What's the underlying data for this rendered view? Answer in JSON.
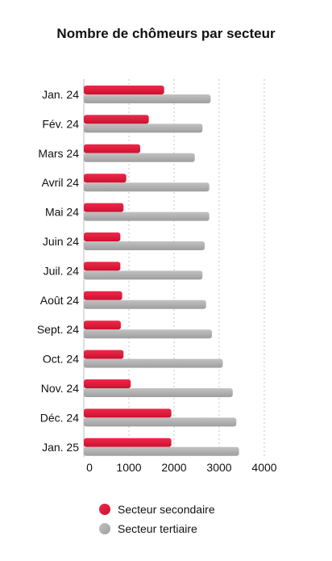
{
  "chart_data": {
    "type": "bar",
    "orientation": "horizontal",
    "title": "Nombre de chômeurs par secteur",
    "categories": [
      "Jan. 24",
      "Fév. 24",
      "Mars 24",
      "Avril 24",
      "Mai 24",
      "Juin 24",
      "Juil. 24",
      "Août 24",
      "Sept. 24",
      "Oct. 24",
      "Nov. 24",
      "Déc. 24",
      "Jan. 25"
    ],
    "series": [
      {
        "name": "Secteur secondaire",
        "color": "#e3173e",
        "values": [
          1780,
          1440,
          1250,
          940,
          880,
          810,
          810,
          850,
          820,
          880,
          1040,
          1940,
          1940
        ]
      },
      {
        "name": "Secteur tertiaire",
        "color": "#b1b1b1",
        "values": [
          2810,
          2630,
          2460,
          2780,
          2780,
          2680,
          2630,
          2710,
          2840,
          3080,
          3300,
          3380,
          3440
        ]
      }
    ],
    "xlim": [
      0,
      4000
    ],
    "xticks": [
      "0",
      "1000",
      "2000",
      "3000",
      "4000"
    ],
    "grid": true,
    "legend_position": "bottom"
  }
}
